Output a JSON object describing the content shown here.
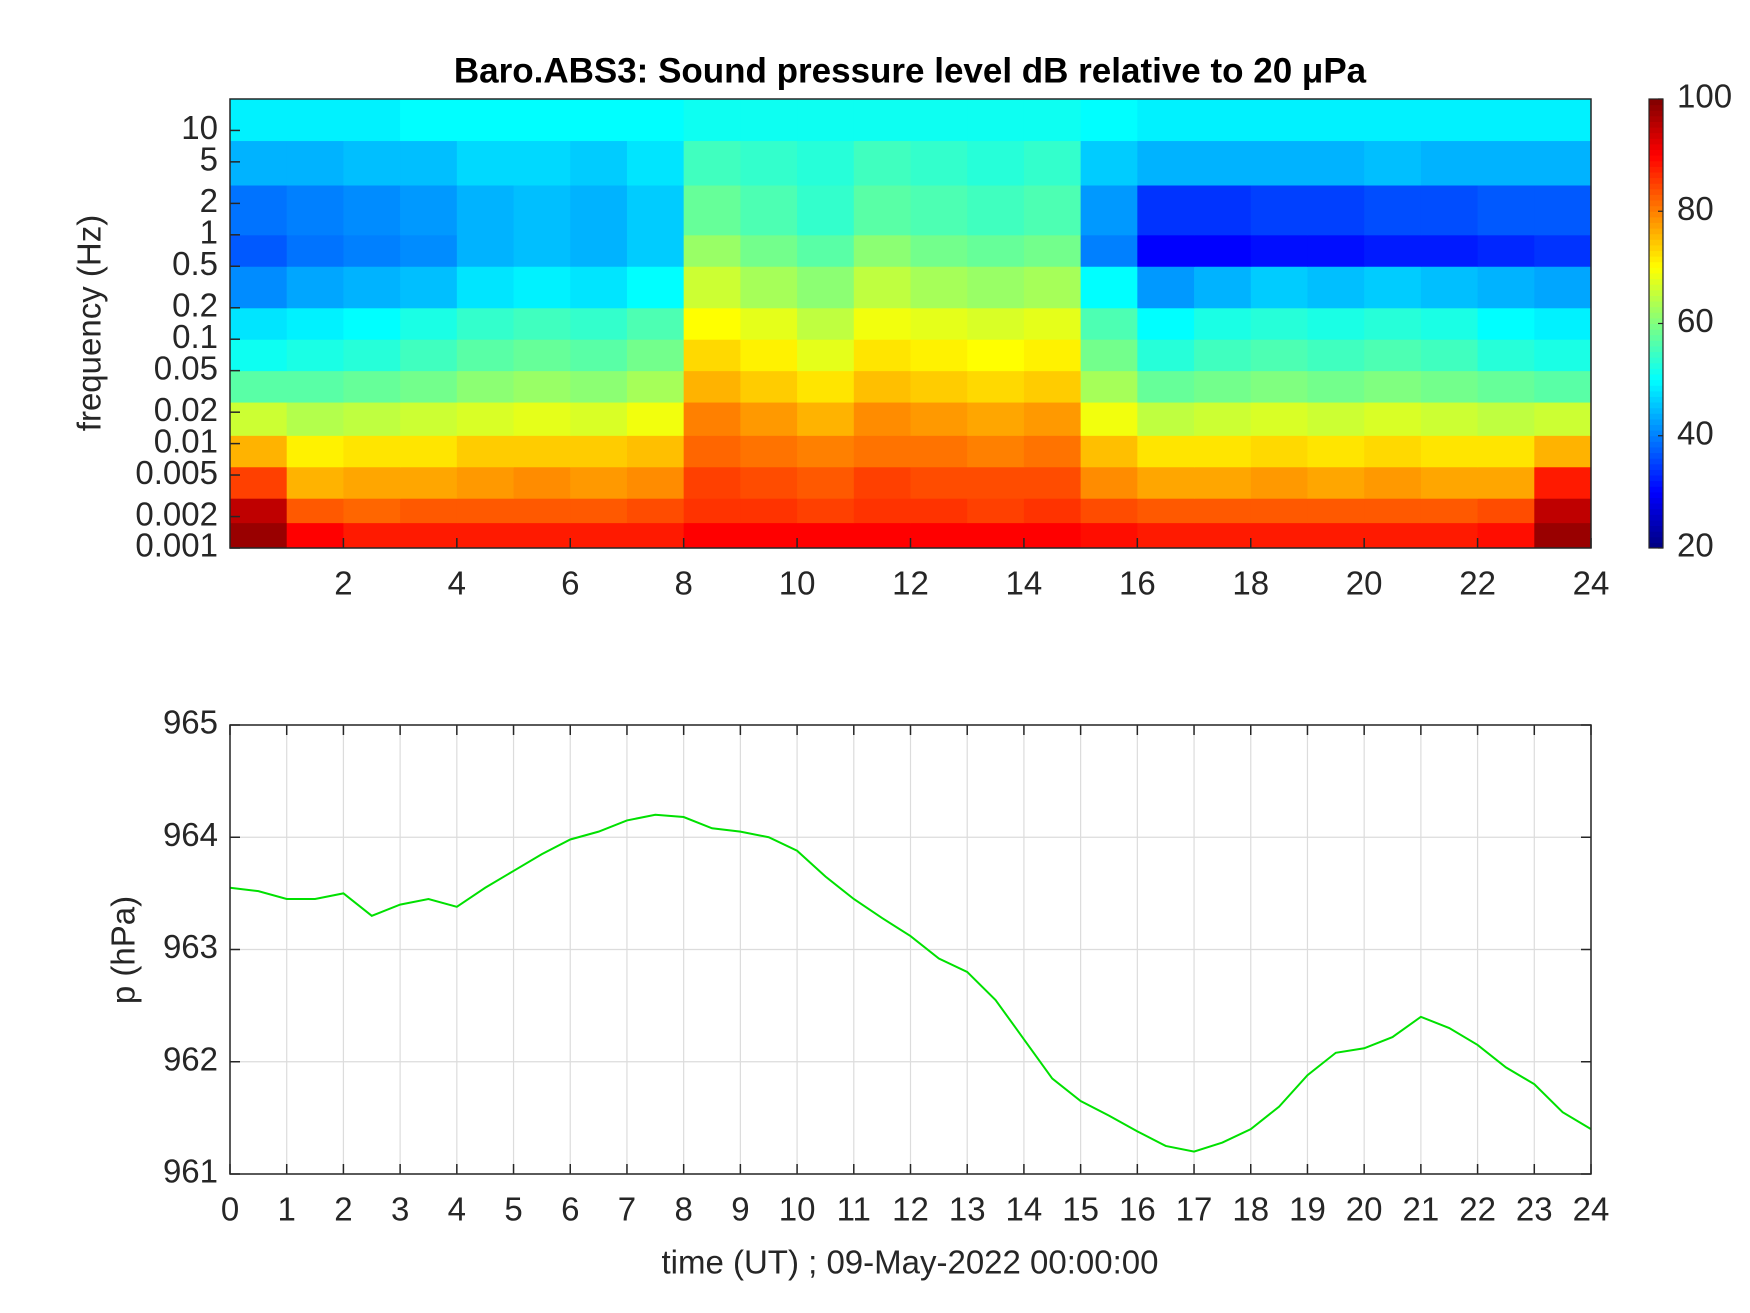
{
  "chart_data": [
    {
      "type": "heatmap",
      "title": "Baro.ABS3: Sound pressure level dB relative to 20 μPa",
      "ylabel": "frequency (Hz)",
      "colormap": "jet",
      "log_y": true,
      "xlim": [
        0,
        24
      ],
      "xticks": [
        2,
        4,
        6,
        8,
        10,
        12,
        14,
        16,
        18,
        20,
        22,
        24
      ],
      "ylim": [
        0.001,
        20
      ],
      "yticks": [
        0.001,
        0.002,
        0.005,
        0.01,
        0.02,
        0.05,
        0.1,
        0.2,
        0.5,
        1,
        2,
        5,
        10
      ],
      "clim": [
        20,
        100
      ],
      "cticks": [
        20,
        40,
        60,
        80,
        100
      ],
      "xbins": [
        0,
        1,
        2,
        3,
        4,
        5,
        6,
        7,
        8,
        9,
        10,
        11,
        12,
        13,
        14,
        15,
        16,
        17,
        18,
        19,
        20,
        21,
        22,
        23,
        24
      ],
      "ybins": [
        0.001,
        0.00175,
        0.003,
        0.006,
        0.012,
        0.025,
        0.05,
        0.1,
        0.2,
        0.5,
        1,
        3,
        8,
        20
      ],
      "z": [
        [
          98,
          90,
          88,
          88,
          88,
          88,
          88,
          88,
          90,
          90,
          90,
          90,
          90,
          90,
          90,
          89,
          88,
          88,
          88,
          88,
          88,
          88,
          89,
          98
        ],
        [
          95,
          83,
          82,
          83,
          83,
          83,
          83,
          84,
          86,
          86,
          85,
          86,
          86,
          85,
          86,
          84,
          83,
          83,
          83,
          83,
          83,
          83,
          84,
          95
        ],
        [
          85,
          76,
          77,
          77,
          78,
          79,
          78,
          79,
          85,
          84,
          83,
          85,
          84,
          84,
          84,
          79,
          77,
          77,
          78,
          77,
          78,
          77,
          77,
          88
        ],
        [
          76,
          71,
          72,
          72,
          74,
          74,
          74,
          75,
          82,
          81,
          80,
          81,
          81,
          80,
          81,
          75,
          72,
          72,
          73,
          72,
          73,
          72,
          72,
          76
        ],
        [
          66,
          64,
          65,
          66,
          67,
          68,
          67,
          69,
          80,
          78,
          76,
          79,
          78,
          77,
          78,
          69,
          65,
          66,
          67,
          66,
          67,
          66,
          65,
          66
        ],
        [
          57,
          57,
          58,
          59,
          61,
          62,
          61,
          63,
          76,
          74,
          72,
          75,
          74,
          73,
          74,
          63,
          58,
          59,
          60,
          59,
          60,
          59,
          58,
          57
        ],
        [
          51,
          52,
          53,
          55,
          57,
          58,
          57,
          59,
          73,
          71,
          68,
          72,
          71,
          70,
          71,
          59,
          53,
          55,
          56,
          55,
          56,
          55,
          53,
          52
        ],
        [
          48,
          49,
          50,
          52,
          54,
          55,
          54,
          56,
          70,
          68,
          65,
          69,
          68,
          67,
          68,
          56,
          50,
          52,
          53,
          52,
          53,
          52,
          50,
          49
        ],
        [
          41,
          43,
          44,
          45,
          48,
          49,
          48,
          50,
          66,
          63,
          61,
          65,
          63,
          62,
          63,
          50,
          42,
          44,
          46,
          45,
          46,
          45,
          44,
          43
        ],
        [
          37,
          39,
          40,
          41,
          44,
          45,
          44,
          46,
          62,
          59,
          57,
          61,
          59,
          58,
          59,
          40,
          30,
          30,
          31,
          31,
          32,
          32,
          33,
          34
        ],
        [
          39,
          40,
          41,
          42,
          44,
          45,
          44,
          46,
          58,
          56,
          54,
          57,
          56,
          55,
          56,
          42,
          34,
          34,
          35,
          35,
          36,
          36,
          37,
          37
        ],
        [
          44,
          44,
          45,
          45,
          47,
          47,
          46,
          48,
          55,
          54,
          53,
          55,
          54,
          53,
          54,
          46,
          44,
          44,
          44,
          44,
          45,
          44,
          44,
          44
        ],
        [
          49,
          49,
          49,
          50,
          50,
          50,
          50,
          50,
          51,
          51,
          51,
          51,
          51,
          51,
          51,
          50,
          49,
          49,
          49,
          49,
          49,
          49,
          49,
          49
        ]
      ]
    },
    {
      "type": "line",
      "xlabel": "time (UT) ; 09-May-2022 00:00:00",
      "ylabel": "p (hPa)",
      "color": "#00e000",
      "grid": true,
      "xlim": [
        0,
        24
      ],
      "xticks": [
        0,
        1,
        2,
        3,
        4,
        5,
        6,
        7,
        8,
        9,
        10,
        11,
        12,
        13,
        14,
        15,
        16,
        17,
        18,
        19,
        20,
        21,
        22,
        23,
        24
      ],
      "ylim": [
        961,
        965
      ],
      "yticks": [
        961,
        962,
        963,
        964,
        965
      ],
      "x": [
        0,
        0.5,
        1,
        1.5,
        2,
        2.5,
        3,
        3.5,
        4,
        4.5,
        5,
        5.5,
        6,
        6.5,
        7,
        7.5,
        8,
        8.5,
        9,
        9.5,
        10,
        10.5,
        11,
        11.5,
        12,
        12.5,
        13,
        13.5,
        14,
        14.5,
        15,
        15.5,
        16,
        16.5,
        17,
        17.5,
        18,
        18.5,
        19,
        19.5,
        20,
        20.5,
        21,
        21.5,
        22,
        22.5,
        23,
        23.5,
        24
      ],
      "values": [
        963.55,
        963.52,
        963.45,
        963.45,
        963.5,
        963.3,
        963.4,
        963.45,
        963.38,
        963.55,
        963.7,
        963.85,
        963.98,
        964.05,
        964.15,
        964.2,
        964.18,
        964.08,
        964.05,
        964.0,
        963.88,
        963.65,
        963.45,
        963.28,
        963.12,
        962.92,
        962.8,
        962.55,
        962.2,
        961.85,
        961.65,
        961.52,
        961.38,
        961.25,
        961.2,
        961.28,
        961.4,
        961.6,
        961.88,
        962.08,
        962.12,
        962.22,
        962.4,
        962.3,
        962.15,
        961.95,
        961.8,
        961.55,
        961.4
      ]
    }
  ]
}
